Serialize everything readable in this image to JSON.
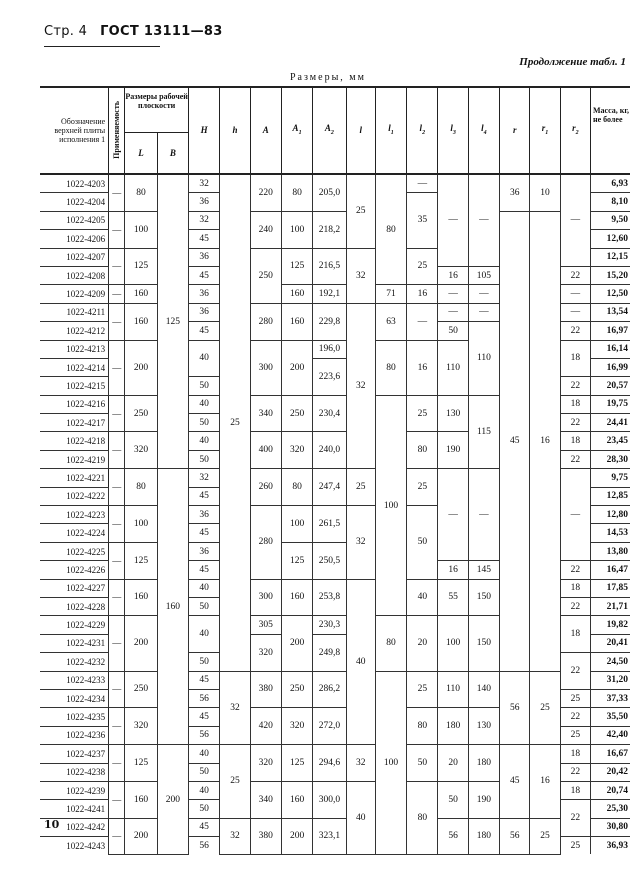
{
  "running_head": {
    "page_label": "Стр. 4",
    "standard": "ГОСТ 13111—83"
  },
  "continuation": "Продолжение табл. 1",
  "units": "Размеры, мм",
  "page_number": "10",
  "table": {
    "headers": {
      "designation": "Обозначение верхней плиты исполнения 1",
      "applicability": "Применяемость",
      "work_surface": "Размеры рабочей плоскости",
      "L": "L",
      "B": "B",
      "dims": [
        {
          "main": "H",
          "sub": ""
        },
        {
          "main": "h",
          "sub": ""
        },
        {
          "main": "A",
          "sub": ""
        },
        {
          "main": "A",
          "sub": "1"
        },
        {
          "main": "A",
          "sub": "2"
        },
        {
          "main": "l",
          "sub": ""
        },
        {
          "main": "l",
          "sub": "1"
        },
        {
          "main": "l",
          "sub": "2"
        },
        {
          "main": "l",
          "sub": "3"
        },
        {
          "main": "l",
          "sub": "4"
        },
        {
          "main": "r",
          "sub": ""
        },
        {
          "main": "r",
          "sub": "1"
        },
        {
          "main": "r",
          "sub": "2"
        }
      ],
      "mass": "Масса, кг, не более"
    },
    "designations": [
      "1022-4203",
      "1022-4204",
      "1022-4205",
      "1022-4206",
      "1022-4207",
      "1022-4208",
      "1022-4209",
      "1022-4211",
      "1022-4212",
      "1022-4213",
      "1022-4214",
      "1022-4215",
      "1022-4216",
      "1022-4217",
      "1022-4218",
      "1022-4219",
      "1022-4221",
      "1022-4222",
      "1022-4223",
      "1022-4224",
      "1022-4225",
      "1022-4226",
      "1022-4227",
      "1022-4228",
      "1022-4229",
      "1022-4231",
      "1022-4232",
      "1022-4233",
      "1022-4234",
      "1022-4235",
      "1022-4236",
      "1022-4237",
      "1022-4238",
      "1022-4239",
      "1022-4241",
      "1022-4242",
      "1022-4243"
    ],
    "mass": [
      "6,93",
      "8,10",
      "9,50",
      "12,60",
      "12,15",
      "15,20",
      "12,50",
      "13,54",
      "16,97",
      "16,14",
      "16,99",
      "20,57",
      "19,75",
      "24,41",
      "23,45",
      "28,30",
      "9,75",
      "12,85",
      "12,80",
      "14,53",
      "13,80",
      "16,47",
      "17,85",
      "21,71",
      "19,82",
      "20,41",
      "24,50",
      "31,20",
      "37,33",
      "35,50",
      "42,40",
      "16,67",
      "20,42",
      "20,74",
      "25,30",
      "30,80",
      "36,93"
    ],
    "columns": [
      {
        "key": "applicability",
        "segments": [
          [
            "—",
            2
          ],
          [
            "—",
            2
          ],
          [
            "—",
            2
          ],
          [
            "—",
            1
          ],
          [
            "—",
            2
          ],
          [
            "—",
            3
          ],
          [
            "—",
            2
          ],
          [
            "—",
            2
          ],
          [
            "—",
            2
          ],
          [
            "—",
            2
          ],
          [
            "—",
            2
          ],
          [
            "—",
            2
          ],
          [
            "—",
            3
          ],
          [
            "—",
            2
          ],
          [
            "—",
            2
          ],
          [
            "—",
            2
          ],
          [
            "—",
            2
          ],
          [
            "—",
            2
          ]
        ]
      },
      {
        "key": "L",
        "segments": [
          [
            "80",
            2
          ],
          [
            "100",
            2
          ],
          [
            "125",
            2
          ],
          [
            "160",
            1
          ],
          [
            "160",
            2
          ],
          [
            "200",
            3
          ],
          [
            "250",
            2
          ],
          [
            "320",
            2
          ],
          [
            "80",
            2
          ],
          [
            "100",
            2
          ],
          [
            "125",
            2
          ],
          [
            "160",
            2
          ],
          [
            "200",
            3
          ],
          [
            "250",
            2
          ],
          [
            "320",
            2
          ],
          [
            "125",
            2
          ],
          [
            "160",
            2
          ],
          [
            "200",
            2
          ]
        ]
      },
      {
        "key": "B",
        "segments": [
          [
            "125",
            16
          ],
          [
            "160",
            15
          ],
          [
            "200",
            6
          ]
        ]
      },
      {
        "key": "H",
        "segments": [
          [
            "32",
            1
          ],
          [
            "36",
            1
          ],
          [
            "32",
            1
          ],
          [
            "45",
            1
          ],
          [
            "36",
            1
          ],
          [
            "45",
            1
          ],
          [
            "36",
            1
          ],
          [
            "36",
            1
          ],
          [
            "45",
            1
          ],
          [
            "40",
            2
          ],
          [
            "50",
            1
          ],
          [
            "40",
            1
          ],
          [
            "50",
            1
          ],
          [
            "40",
            1
          ],
          [
            "50",
            1
          ],
          [
            "32",
            1
          ],
          [
            "45",
            1
          ],
          [
            "36",
            1
          ],
          [
            "45",
            1
          ],
          [
            "36",
            1
          ],
          [
            "45",
            1
          ],
          [
            "40",
            1
          ],
          [
            "50",
            1
          ],
          [
            "40",
            2
          ],
          [
            "50",
            1
          ],
          [
            "45",
            1
          ],
          [
            "56",
            1
          ],
          [
            "45",
            1
          ],
          [
            "56",
            1
          ],
          [
            "40",
            1
          ],
          [
            "50",
            1
          ],
          [
            "40",
            1
          ],
          [
            "50",
            1
          ],
          [
            "45",
            1
          ],
          [
            "56",
            1
          ]
        ]
      },
      {
        "key": "h",
        "segments": [
          [
            "25",
            27
          ],
          [
            "32",
            4
          ],
          [
            "25",
            4
          ],
          [
            "32",
            2
          ]
        ]
      },
      {
        "key": "A",
        "segments": [
          [
            "220",
            2
          ],
          [
            "240",
            2
          ],
          [
            "250",
            3
          ],
          [
            "280",
            2
          ],
          [
            "300",
            3
          ],
          [
            "340",
            2
          ],
          [
            "400",
            2
          ],
          [
            "260",
            2
          ],
          [
            "280",
            4
          ],
          [
            "300",
            2
          ],
          [
            "305",
            1
          ],
          [
            "320",
            2
          ],
          [
            "380",
            2
          ],
          [
            "420",
            2
          ],
          [
            "320",
            2
          ],
          [
            "340",
            2
          ],
          [
            "380",
            2
          ]
        ]
      },
      {
        "key": "A1",
        "segments": [
          [
            "80",
            2
          ],
          [
            "100",
            2
          ],
          [
            "125",
            2
          ],
          [
            "160",
            1
          ],
          [
            "160",
            2
          ],
          [
            "200",
            3
          ],
          [
            "250",
            2
          ],
          [
            "320",
            2
          ],
          [
            "80",
            2
          ],
          [
            "100",
            2
          ],
          [
            "125",
            2
          ],
          [
            "160",
            2
          ],
          [
            "200",
            3
          ],
          [
            "250",
            2
          ],
          [
            "320",
            2
          ],
          [
            "125",
            2
          ],
          [
            "160",
            2
          ],
          [
            "200",
            2
          ]
        ]
      },
      {
        "key": "A2",
        "segments": [
          [
            "205,0",
            2
          ],
          [
            "218,2",
            2
          ],
          [
            "216,5",
            2
          ],
          [
            "192,1",
            1
          ],
          [
            "229,8",
            2
          ],
          [
            "196,0",
            1
          ],
          [
            "223,6",
            2
          ],
          [
            "230,4",
            2
          ],
          [
            "240,0",
            2
          ],
          [
            "247,4",
            2
          ],
          [
            "261,5",
            2
          ],
          [
            "250,5",
            2
          ],
          [
            "253,8",
            2
          ],
          [
            "230,3",
            1
          ],
          [
            "249,8",
            2
          ],
          [
            "286,2",
            2
          ],
          [
            "272,0",
            2
          ],
          [
            "294,6",
            2
          ],
          [
            "300,0",
            2
          ],
          [
            "323,1",
            2
          ]
        ]
      },
      {
        "key": "l",
        "segments": [
          [
            "25",
            4
          ],
          [
            "32",
            3
          ],
          [
            "32",
            9
          ],
          [
            "25",
            2
          ],
          [
            "32",
            4
          ],
          [
            "40",
            9
          ],
          [
            "32",
            2
          ],
          [
            "40",
            4
          ]
        ]
      },
      {
        "key": "l1",
        "segments": [
          [
            "80",
            6
          ],
          [
            "71",
            1
          ],
          [
            "63",
            2
          ],
          [
            "80",
            3
          ],
          [
            "100",
            12
          ],
          [
            "80",
            3
          ],
          [
            "100",
            10
          ]
        ]
      },
      {
        "key": "l2",
        "segments": [
          [
            "—",
            1
          ],
          [
            "35",
            3
          ],
          [
            "25",
            2
          ],
          [
            "16",
            1
          ],
          [
            "—",
            2
          ],
          [
            "16",
            3
          ],
          [
            "25",
            2
          ],
          [
            "80",
            2
          ],
          [
            "25",
            2
          ],
          [
            "50",
            4
          ],
          [
            "40",
            2
          ],
          [
            "20",
            3
          ],
          [
            "25",
            2
          ],
          [
            "80",
            2
          ],
          [
            "50",
            2
          ],
          [
            "80",
            4
          ]
        ]
      },
      {
        "key": "l3",
        "segments": [
          [
            "—",
            5
          ],
          [
            "16",
            1
          ],
          [
            "—",
            1
          ],
          [
            "—",
            1
          ],
          [
            "50",
            1
          ],
          [
            "110",
            3
          ],
          [
            "130",
            2
          ],
          [
            "190",
            2
          ],
          [
            "—",
            5
          ],
          [
            "16",
            1
          ],
          [
            "55",
            2
          ],
          [
            "100",
            3
          ],
          [
            "110",
            2
          ],
          [
            "180",
            2
          ],
          [
            "20",
            2
          ],
          [
            "50",
            2
          ],
          [
            "56",
            2
          ]
        ]
      },
      {
        "key": "l4",
        "segments": [
          [
            "—",
            5
          ],
          [
            "105",
            1
          ],
          [
            "—",
            1
          ],
          [
            "—",
            1
          ],
          [
            "110",
            4
          ],
          [
            "115",
            4
          ],
          [
            "—",
            5
          ],
          [
            "145",
            1
          ],
          [
            "150",
            2
          ],
          [
            "150",
            3
          ],
          [
            "140",
            2
          ],
          [
            "130",
            2
          ],
          [
            "180",
            2
          ],
          [
            "190",
            2
          ],
          [
            "180",
            2
          ]
        ]
      },
      {
        "key": "r",
        "segments": [
          [
            "36",
            2
          ],
          [
            "45",
            25
          ],
          [
            "56",
            4
          ],
          [
            "45",
            4
          ],
          [
            "56",
            2
          ]
        ]
      },
      {
        "key": "r1",
        "segments": [
          [
            "10",
            2
          ],
          [
            "16",
            25
          ],
          [
            "25",
            4
          ],
          [
            "16",
            4
          ],
          [
            "25",
            2
          ]
        ]
      },
      {
        "key": "r2",
        "segments": [
          [
            "—",
            5
          ],
          [
            "22",
            1
          ],
          [
            "—",
            1
          ],
          [
            "—",
            1
          ],
          [
            "22",
            1
          ],
          [
            "18",
            2
          ],
          [
            "22",
            1
          ],
          [
            "18",
            1
          ],
          [
            "22",
            1
          ],
          [
            "18",
            1
          ],
          [
            "22",
            1
          ],
          [
            "—",
            5
          ],
          [
            "22",
            1
          ],
          [
            "18",
            1
          ],
          [
            "22",
            1
          ],
          [
            "18",
            2
          ],
          [
            "22",
            2
          ],
          [
            "25",
            1
          ],
          [
            "22",
            1
          ],
          [
            "25",
            1
          ],
          [
            "18",
            1
          ],
          [
            "22",
            1
          ],
          [
            "18",
            1
          ],
          [
            "22",
            2
          ],
          [
            "25",
            1
          ]
        ]
      }
    ]
  }
}
